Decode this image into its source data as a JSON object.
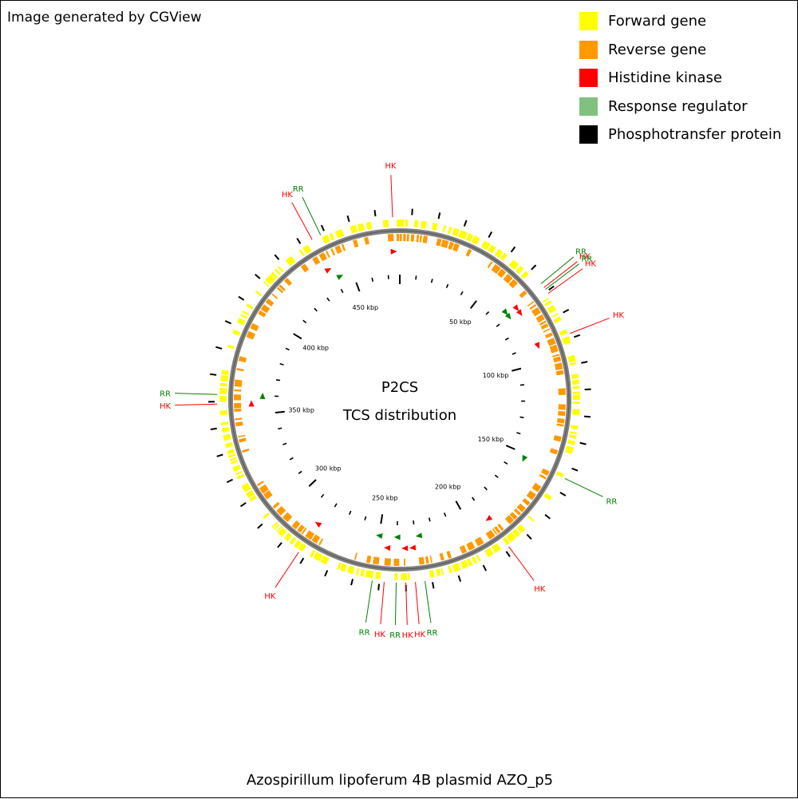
{
  "attribution": "Image generated by CGView",
  "legend": [
    {
      "label": "Forward gene",
      "color": "#ffff00"
    },
    {
      "label": "Reverse gene",
      "color": "#ff9900"
    },
    {
      "label": "Histidine kinase",
      "color": "#ff0000"
    },
    {
      "label": "Response regulator",
      "color": "#80c080"
    },
    {
      "label": "Phosphotransfer protein",
      "color": "#000000"
    }
  ],
  "center_title": "P2CS",
  "center_subtitle": "TCS distribution",
  "plasmid_name": "Azospirillum lipoferum 4B plasmid AZO_p5",
  "map": {
    "total_kbp": 477,
    "tick_labels": [
      "50 kbp",
      "100 kbp",
      "150 kbp",
      "200 kbp",
      "250 kbp",
      "300 kbp",
      "350 kbp",
      "400 kbp",
      "450 kbp"
    ],
    "colors": {
      "forward": "#ffff00",
      "reverse": "#ff9900",
      "hk": "#ff0000",
      "rr": "#008000",
      "backbone": "#808080"
    },
    "callouts": [
      {
        "label": "HK",
        "type": "hk",
        "kbp": 439
      },
      {
        "label": "RR",
        "type": "rr",
        "kbp": 443
      },
      {
        "label": "HK",
        "type": "hk",
        "kbp": 474
      },
      {
        "label": "RR",
        "type": "rr",
        "kbp": 67
      },
      {
        "label": "HK",
        "type": "hk",
        "kbp": 69
      },
      {
        "label": "RR",
        "type": "rr",
        "kbp": 70
      },
      {
        "label": "HK",
        "type": "hk",
        "kbp": 72
      },
      {
        "label": "HK",
        "type": "hk",
        "kbp": 91
      },
      {
        "label": "RR",
        "type": "rr",
        "kbp": 153
      },
      {
        "label": "HK",
        "type": "hk",
        "kbp": 190
      },
      {
        "label": "RR",
        "type": "rr",
        "kbp": 228
      },
      {
        "label": "HK",
        "type": "hk",
        "kbp": 232
      },
      {
        "label": "HK",
        "type": "hk",
        "kbp": 236
      },
      {
        "label": "RR",
        "type": "rr",
        "kbp": 240
      },
      {
        "label": "HK",
        "type": "hk",
        "kbp": 245
      },
      {
        "label": "RR",
        "type": "rr",
        "kbp": 250
      },
      {
        "label": "HK",
        "type": "hk",
        "kbp": 283
      },
      {
        "label": "HK",
        "type": "hk",
        "kbp": 356
      },
      {
        "label": "RR",
        "type": "rr",
        "kbp": 360
      }
    ]
  }
}
